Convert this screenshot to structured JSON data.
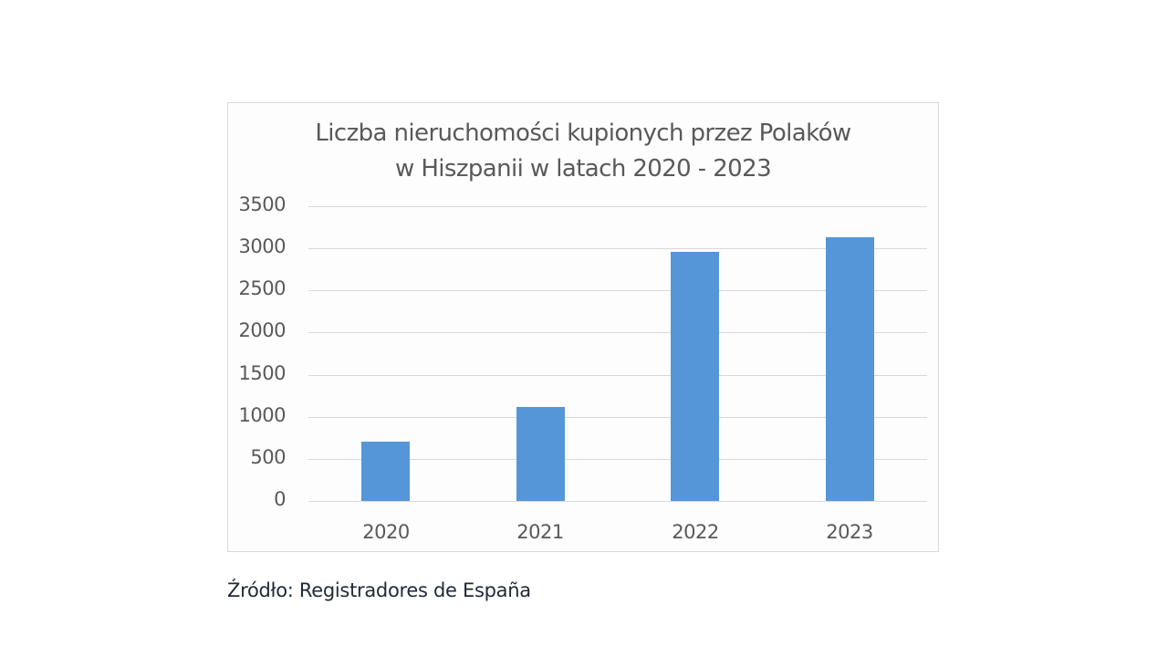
{
  "chart_data": {
    "type": "bar",
    "title": "Liczba nieruchomości kupionych przez Polaków w Hiszpanii w latach 2020 - 2023",
    "title_lines": [
      "Liczba nieruchomości kupionych przez Polaków",
      "w Hiszpanii w latach 2020 - 2023"
    ],
    "categories": [
      "2020",
      "2021",
      "2022",
      "2023"
    ],
    "values": [
      700,
      1120,
      2960,
      3130
    ],
    "xlabel": "",
    "ylabel": "",
    "ylim": [
      0,
      3500
    ],
    "yticks": [
      0,
      500,
      1000,
      1500,
      2000,
      2500,
      3000,
      3500
    ],
    "grid": true,
    "legend": "none",
    "bar_color": "#5596D8"
  },
  "source": "Źródło: Registradores de España"
}
